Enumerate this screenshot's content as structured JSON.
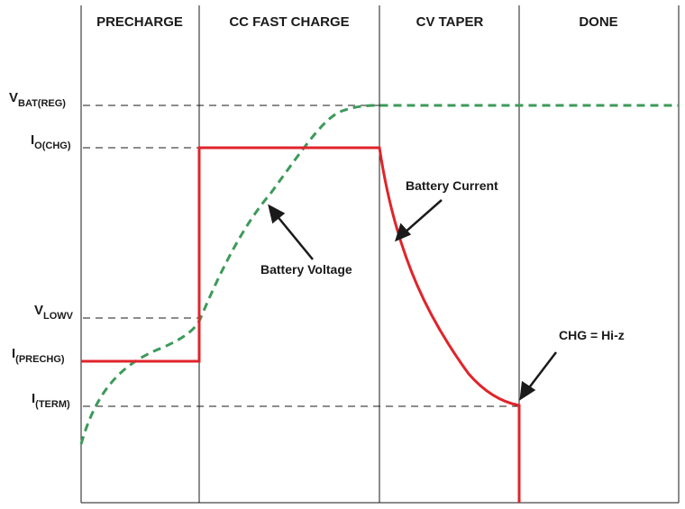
{
  "phases": [
    {
      "label": "PRECHARGE"
    },
    {
      "label": "CC FAST CHARGE"
    },
    {
      "label": "CV TAPER"
    },
    {
      "label": "DONE"
    }
  ],
  "levels": [
    {
      "main": "V",
      "sub": "BAT(REG)"
    },
    {
      "main": "I",
      "sub": "O(CHG)"
    },
    {
      "main": "V",
      "sub": "LOWV"
    },
    {
      "main": "I",
      "sub": "(PRECHG)"
    },
    {
      "main": "I",
      "sub": "(TERM)"
    }
  ],
  "annotations": {
    "battery_current": "Battery Current",
    "battery_voltage": "Battery Voltage",
    "chg_status": "CHG = Hi-z"
  },
  "colors": {
    "current": "#e0242b",
    "voltage": "#3c9a5a",
    "axis": "#1a1a1a",
    "dash": "#1a1a1a"
  }
}
